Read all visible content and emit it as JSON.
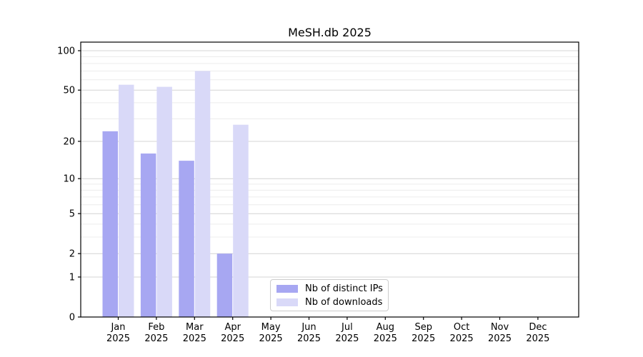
{
  "title": "MeSH.db 2025",
  "colors": {
    "distinct_ips": "#a7a7f2",
    "downloads": "#d9d9f8",
    "grid_major": "#d4d4d4",
    "grid_minor": "#ececec",
    "frame": "#000000",
    "text": "#000000",
    "legend_border": "#cccccc"
  },
  "chart_data": {
    "type": "bar",
    "title": "MeSH.db 2025",
    "categories": [
      "Jan 2025",
      "Feb 2025",
      "Mar 2025",
      "Apr 2025",
      "May 2025",
      "Jun 2025",
      "Jul 2025",
      "Aug 2025",
      "Sep 2025",
      "Oct 2025",
      "Nov 2025",
      "Dec 2025"
    ],
    "series": [
      {
        "name": "Nb of distinct IPs",
        "color": "#a7a7f2",
        "values": [
          24,
          16,
          14,
          2,
          0,
          0,
          0,
          0,
          0,
          0,
          0,
          0
        ]
      },
      {
        "name": "Nb of downloads",
        "color": "#d9d9f8",
        "values": [
          55,
          53,
          70,
          27,
          0,
          0,
          0,
          0,
          0,
          0,
          0,
          0
        ]
      }
    ],
    "xlabel": "",
    "ylabel": "",
    "yscale": "log1p",
    "ylim": [
      0,
      116
    ],
    "yticks": [
      0,
      1,
      2,
      5,
      10,
      20,
      50,
      100
    ],
    "minor_yticks": [
      3,
      4,
      6,
      7,
      8,
      9,
      30,
      40,
      60,
      70,
      80,
      90
    ],
    "grid": "on",
    "legend_position": "lower center"
  }
}
